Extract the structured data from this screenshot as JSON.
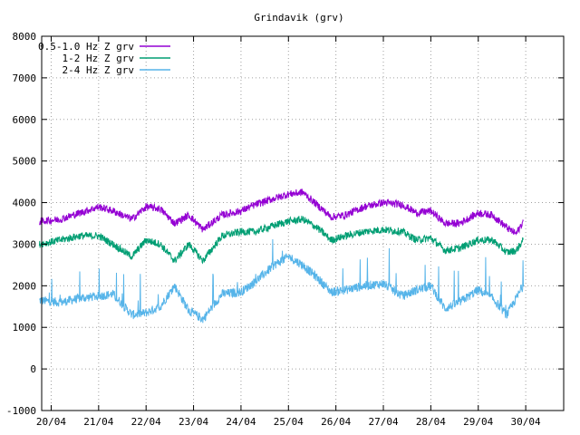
{
  "chart_data": {
    "type": "line",
    "title": "Grindavik (grv)",
    "xlabel": "",
    "ylabel": "",
    "ylim": [
      -1000,
      8000
    ],
    "xlim": [
      -0.2,
      10.8
    ],
    "y_ticks": [
      -1000,
      0,
      1000,
      2000,
      3000,
      4000,
      5000,
      6000,
      7000,
      8000
    ],
    "x_ticks": [
      {
        "x": 0,
        "label": "20/04"
      },
      {
        "x": 1,
        "label": "21/04"
      },
      {
        "x": 2,
        "label": "22/04"
      },
      {
        "x": 3,
        "label": "23/04"
      },
      {
        "x": 4,
        "label": "24/04"
      },
      {
        "x": 5,
        "label": "25/04"
      },
      {
        "x": 6,
        "label": "26/04"
      },
      {
        "x": 7,
        "label": "27/04"
      },
      {
        "x": 8,
        "label": "28/04"
      },
      {
        "x": 9,
        "label": "29/04"
      },
      {
        "x": 10,
        "label": "30/04"
      }
    ],
    "grid": true,
    "legend_position": "top-left",
    "series": [
      {
        "name": "0.5-1.0 Hz Z grv",
        "color": "#9400d3",
        "noise": 90,
        "x": [
          -0.25,
          0.2,
          0.6,
          1.0,
          1.3,
          1.7,
          2.0,
          2.3,
          2.6,
          2.9,
          3.2,
          3.6,
          4.0,
          4.3,
          4.7,
          5.0,
          5.3,
          5.6,
          5.9,
          6.2,
          6.6,
          7.0,
          7.4,
          7.7,
          8.0,
          8.3,
          8.6,
          9.0,
          9.3,
          9.6,
          9.8,
          9.95
        ],
        "y": [
          3550,
          3600,
          3750,
          3900,
          3800,
          3600,
          3900,
          3850,
          3500,
          3700,
          3350,
          3700,
          3800,
          3950,
          4100,
          4200,
          4250,
          3950,
          3650,
          3700,
          3900,
          4000,
          3950,
          3750,
          3800,
          3500,
          3500,
          3750,
          3700,
          3400,
          3250,
          3550
        ]
      },
      {
        "name": "1-2 Hz Z grv",
        "color": "#009e73",
        "noise": 90,
        "x": [
          -0.25,
          0.2,
          0.6,
          1.0,
          1.3,
          1.7,
          2.0,
          2.3,
          2.6,
          2.9,
          3.2,
          3.6,
          4.0,
          4.3,
          4.7,
          5.0,
          5.3,
          5.6,
          5.9,
          6.2,
          6.6,
          7.0,
          7.4,
          7.7,
          8.0,
          8.3,
          8.6,
          9.0,
          9.3,
          9.6,
          9.8,
          9.95
        ],
        "y": [
          3000,
          3100,
          3200,
          3200,
          3000,
          2700,
          3100,
          3000,
          2600,
          3000,
          2600,
          3200,
          3300,
          3300,
          3450,
          3550,
          3600,
          3400,
          3100,
          3200,
          3300,
          3350,
          3300,
          3100,
          3150,
          2850,
          2900,
          3100,
          3100,
          2800,
          2850,
          3100
        ]
      },
      {
        "name": "2-4 Hz Z grv",
        "color": "#56b4e9",
        "noise": 110,
        "x": [
          -0.25,
          0.2,
          0.6,
          1.0,
          1.3,
          1.7,
          2.0,
          2.3,
          2.6,
          2.9,
          3.2,
          3.6,
          4.0,
          4.3,
          4.7,
          5.0,
          5.3,
          5.6,
          5.9,
          6.2,
          6.6,
          7.0,
          7.4,
          7.7,
          8.0,
          8.3,
          8.6,
          9.0,
          9.3,
          9.6,
          9.8,
          9.95
        ],
        "y": [
          1650,
          1600,
          1700,
          1750,
          1800,
          1300,
          1350,
          1500,
          2000,
          1400,
          1200,
          1800,
          1850,
          2100,
          2500,
          2700,
          2500,
          2200,
          1850,
          1900,
          2000,
          2050,
          1750,
          1900,
          2000,
          1450,
          1600,
          1900,
          1700,
          1300,
          1700,
          2000
        ]
      }
    ]
  }
}
